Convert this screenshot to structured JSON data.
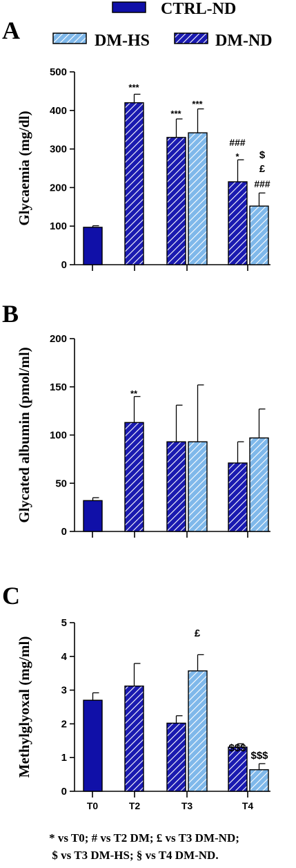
{
  "legend": [
    {
      "label": "CTRL-ND",
      "color": "#1010a8",
      "pattern": "solid"
    },
    {
      "label": "DM-HS",
      "color": "#7fb8ea",
      "pattern": "hatch"
    },
    {
      "label": "DM-ND",
      "color": "#1a1ab0",
      "pattern": "hatch"
    }
  ],
  "footnote": {
    "line1": "* vs T0; # vs T2 DM; £ vs T3 DM-ND;",
    "line2": "$ vs T3 DM-HS; § vs T4 DM-ND."
  },
  "chart_data": [
    {
      "panel": "A",
      "type": "bar",
      "ylabel": "Glycaemia (mg/dl)",
      "ylim": [
        0,
        500
      ],
      "yticks": [
        0,
        100,
        200,
        300,
        400,
        500
      ],
      "x_ticklabels": [],
      "bars": [
        {
          "group": "T0",
          "series": "CTRL-ND",
          "value": 97,
          "error": 4,
          "annotations": []
        },
        {
          "group": "T2",
          "series": "DM-ND",
          "value": 420,
          "error": 22,
          "annotations": [
            "***"
          ]
        },
        {
          "group": "T3",
          "series": "DM-ND",
          "value": 330,
          "error": 48,
          "annotations": [
            "***"
          ]
        },
        {
          "group": "T3",
          "series": "DM-HS",
          "value": 342,
          "error": 62,
          "annotations": [
            "***"
          ]
        },
        {
          "group": "T4",
          "series": "DM-ND",
          "value": 215,
          "error": 57,
          "annotations": [
            "*",
            "###"
          ]
        },
        {
          "group": "T4",
          "series": "DM-HS",
          "value": 152,
          "error": 34,
          "annotations": [
            "###",
            "£",
            "$"
          ]
        }
      ]
    },
    {
      "panel": "B",
      "type": "bar",
      "ylabel": "Glycated albumin (pmol/ml)",
      "ylim": [
        0,
        200
      ],
      "yticks": [
        0,
        50,
        100,
        150,
        200
      ],
      "x_ticklabels": [],
      "bars": [
        {
          "group": "T0",
          "series": "CTRL-ND",
          "value": 32,
          "error": 3,
          "annotations": []
        },
        {
          "group": "T2",
          "series": "DM-ND",
          "value": 113,
          "error": 27,
          "annotations": [
            "**"
          ]
        },
        {
          "group": "T3",
          "series": "DM-ND",
          "value": 93,
          "error": 38,
          "annotations": []
        },
        {
          "group": "T3",
          "series": "DM-HS",
          "value": 93,
          "error": 59,
          "annotations": []
        },
        {
          "group": "T4",
          "series": "DM-ND",
          "value": 71,
          "error": 22,
          "annotations": []
        },
        {
          "group": "T4",
          "series": "DM-HS",
          "value": 97,
          "error": 30,
          "annotations": []
        }
      ]
    },
    {
      "panel": "C",
      "type": "bar",
      "ylabel": "Methylglyoxal (mg/ml)",
      "ylim": [
        0,
        5
      ],
      "yticks": [
        0,
        1,
        2,
        3,
        4,
        5
      ],
      "x_ticklabels": [
        "T0",
        "T2",
        "T3",
        "T4"
      ],
      "bars": [
        {
          "group": "T0",
          "series": "CTRL-ND",
          "value": 2.7,
          "error": 0.22,
          "annotations": []
        },
        {
          "group": "T2",
          "series": "DM-ND",
          "value": 3.12,
          "error": 0.67,
          "annotations": []
        },
        {
          "group": "T3",
          "series": "DM-ND",
          "value": 2.02,
          "error": 0.22,
          "annotations": []
        },
        {
          "group": "T3",
          "series": "DM-HS",
          "value": 3.57,
          "error": 0.48,
          "annotations": [
            "£"
          ]
        },
        {
          "group": "T4",
          "series": "DM-ND",
          "value": 1.31,
          "error": 0.1,
          "annotations": [
            "$$$"
          ]
        },
        {
          "group": "T4",
          "series": "DM-HS",
          "value": 0.64,
          "error": 0.18,
          "annotations": [
            "$$$"
          ]
        }
      ]
    }
  ]
}
